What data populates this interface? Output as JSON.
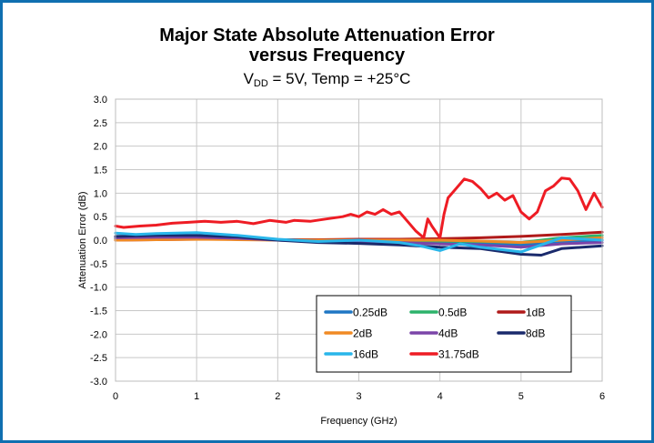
{
  "chart_data": {
    "type": "line",
    "title_line1": "Major State Absolute Attenuation Error",
    "title_line2": "versus Frequency",
    "subtitle": {
      "vdd_prefix": "V",
      "vdd_sub": "DD",
      "rest": " = 5V, Temp  = +25°C"
    },
    "xlabel": "Frequency (GHz)",
    "ylabel": "Attenuation Error (dB)",
    "xlim": [
      0,
      6
    ],
    "ylim": [
      -3.0,
      3.0
    ],
    "x_ticks": [
      "0",
      "1",
      "2",
      "3",
      "4",
      "5",
      "6"
    ],
    "y_ticks": [
      "3.0",
      "2.5",
      "2.0",
      "1.5",
      "1.0",
      "0.5",
      "0.0",
      "-0.5",
      "-1.0",
      "-1.5",
      "-2.0",
      "-2.5",
      "-3.0"
    ],
    "grid": true,
    "legend_position": "bottom-right",
    "series": [
      {
        "name": "0.25dB",
        "color": "#1f77c4",
        "x": [
          0,
          0.5,
          1,
          1.5,
          2,
          2.5,
          3,
          3.5,
          4,
          4.5,
          5,
          5.5,
          6
        ],
        "y": [
          0.03,
          0.04,
          0.05,
          0.03,
          0.0,
          -0.02,
          0.0,
          0.0,
          -0.05,
          -0.05,
          -0.1,
          -0.05,
          0.0
        ]
      },
      {
        "name": "0.5dB",
        "color": "#2db36b",
        "x": [
          0,
          0.5,
          1,
          1.5,
          2,
          2.5,
          3,
          3.5,
          4,
          4.5,
          5,
          5.5,
          6
        ],
        "y": [
          0.02,
          0.03,
          0.04,
          0.03,
          0.0,
          0.0,
          0.0,
          0.0,
          -0.02,
          -0.03,
          -0.05,
          0.05,
          0.1
        ]
      },
      {
        "name": "1dB",
        "color": "#b01a1a",
        "x": [
          0,
          0.5,
          1,
          1.5,
          2,
          2.5,
          3,
          3.5,
          4,
          4.5,
          5,
          5.5,
          6
        ],
        "y": [
          0.0,
          0.01,
          0.02,
          0.02,
          0.01,
          0.01,
          0.02,
          0.02,
          0.03,
          0.05,
          0.08,
          0.12,
          0.17
        ]
      },
      {
        "name": "2dB",
        "color": "#f08a24",
        "x": [
          0,
          0.5,
          1,
          1.5,
          2,
          2.5,
          3,
          3.5,
          4,
          4.5,
          5,
          5.5,
          6
        ],
        "y": [
          0.0,
          0.01,
          0.02,
          0.01,
          0.0,
          0.0,
          0.0,
          0.0,
          0.0,
          -0.02,
          -0.05,
          0.0,
          0.05
        ]
      },
      {
        "name": "4dB",
        "color": "#7b45a8",
        "x": [
          0,
          0.5,
          1,
          1.5,
          2,
          2.5,
          3,
          3.5,
          4,
          4.5,
          5,
          5.5,
          6
        ],
        "y": [
          0.05,
          0.06,
          0.06,
          0.04,
          0.0,
          -0.03,
          -0.03,
          -0.05,
          -0.08,
          -0.1,
          -0.15,
          -0.08,
          -0.05
        ]
      },
      {
        "name": "8dB",
        "color": "#1a2a6c",
        "x": [
          0,
          0.5,
          1,
          1.5,
          2,
          2.5,
          3,
          3.5,
          4,
          4.5,
          5,
          5.25,
          5.5,
          6
        ],
        "y": [
          0.08,
          0.1,
          0.1,
          0.07,
          0.0,
          -0.05,
          -0.07,
          -0.1,
          -0.15,
          -0.18,
          -0.3,
          -0.32,
          -0.18,
          -0.12
        ]
      },
      {
        "name": "16dB",
        "color": "#29b6ea",
        "x": [
          0,
          0.25,
          0.5,
          1,
          1.5,
          2,
          2.5,
          3,
          3.5,
          3.75,
          4,
          4.25,
          4.5,
          5,
          5.5,
          6
        ],
        "y": [
          0.15,
          0.12,
          0.14,
          0.16,
          0.1,
          0.02,
          -0.03,
          0.0,
          -0.05,
          -0.12,
          -0.22,
          -0.08,
          -0.15,
          -0.25,
          0.05,
          0.0
        ]
      },
      {
        "name": "31.75dB",
        "color": "#ee1c24",
        "x": [
          0,
          0.1,
          0.3,
          0.5,
          0.7,
          0.9,
          1.1,
          1.3,
          1.5,
          1.7,
          1.9,
          2.1,
          2.2,
          2.4,
          2.6,
          2.8,
          2.9,
          3.0,
          3.1,
          3.2,
          3.3,
          3.4,
          3.5,
          3.6,
          3.7,
          3.8,
          3.85,
          3.9,
          4.0,
          4.05,
          4.1,
          4.2,
          4.3,
          4.4,
          4.5,
          4.6,
          4.7,
          4.8,
          4.9,
          5.0,
          5.1,
          5.2,
          5.3,
          5.4,
          5.5,
          5.6,
          5.7,
          5.8,
          5.9,
          6.0
        ],
        "y": [
          0.3,
          0.27,
          0.3,
          0.32,
          0.36,
          0.38,
          0.4,
          0.38,
          0.4,
          0.35,
          0.42,
          0.38,
          0.42,
          0.4,
          0.45,
          0.5,
          0.55,
          0.5,
          0.6,
          0.55,
          0.65,
          0.55,
          0.6,
          0.4,
          0.2,
          0.05,
          0.45,
          0.3,
          0.05,
          0.55,
          0.9,
          1.1,
          1.3,
          1.25,
          1.1,
          0.9,
          1.0,
          0.85,
          0.95,
          0.6,
          0.45,
          0.6,
          1.05,
          1.15,
          1.32,
          1.3,
          1.05,
          0.65,
          1.0,
          0.7
        ]
      }
    ]
  }
}
